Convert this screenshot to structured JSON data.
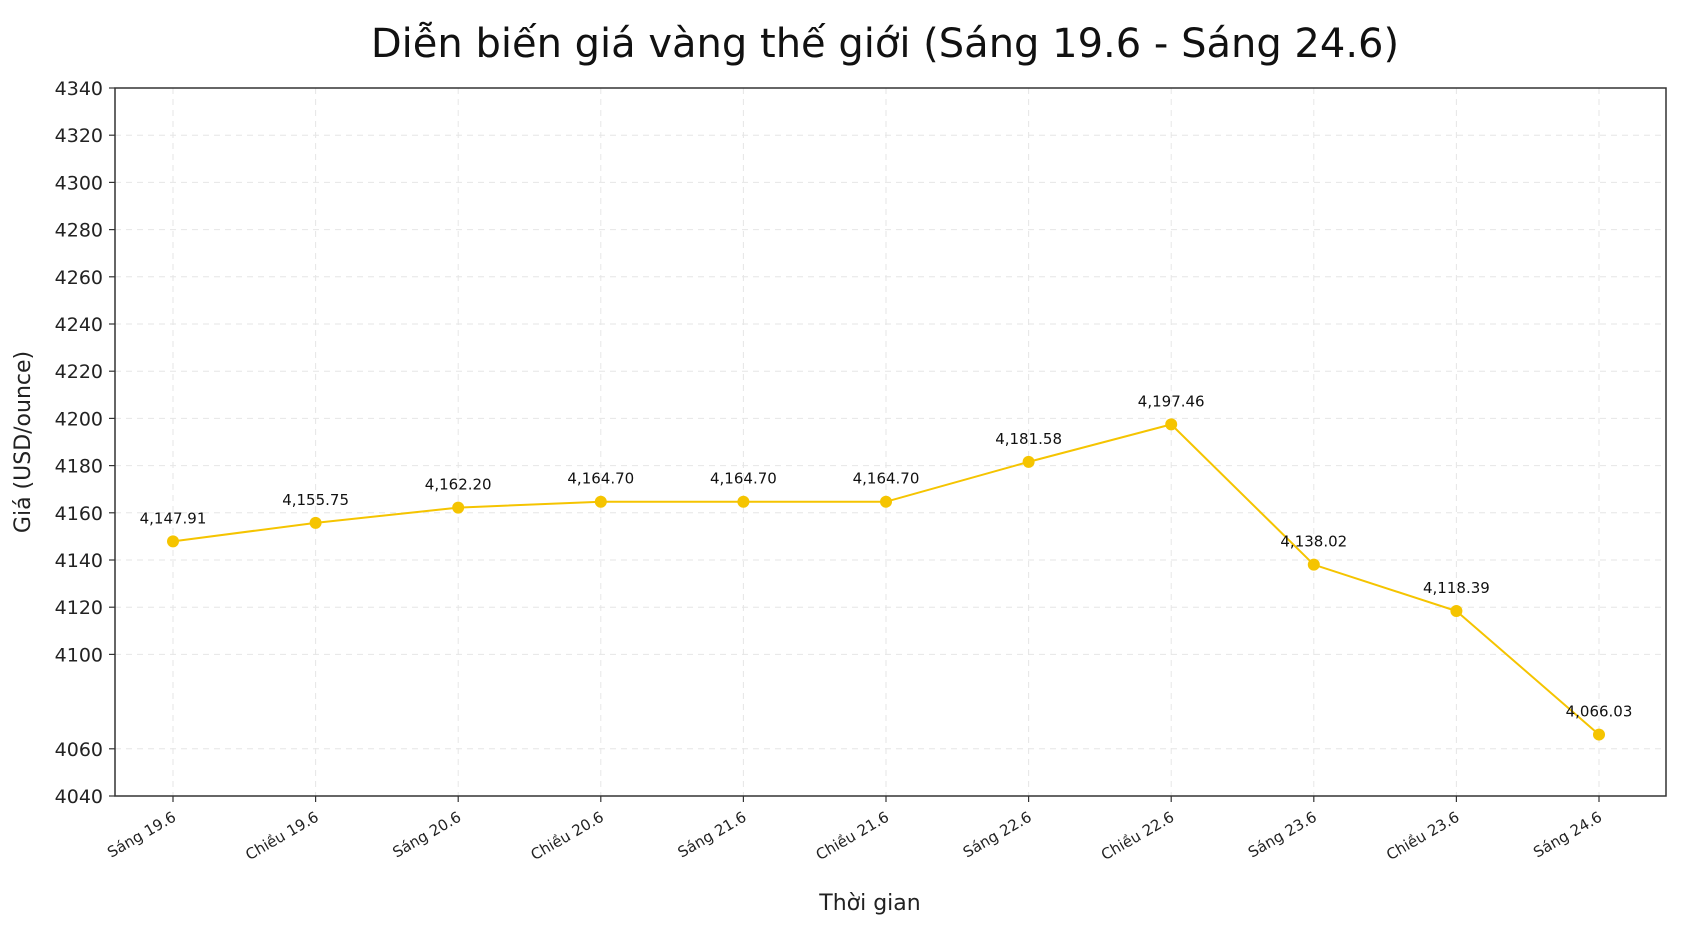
{
  "chart_data": {
    "type": "line",
    "title": "Diễn biến giá vàng thế giới (Sáng 19.6 - Sáng 24.6)",
    "xlabel": "Thời gian",
    "ylabel": "Giá (USD/ounce)",
    "ylim": [
      4040,
      4340
    ],
    "yticks": [
      4040,
      4060,
      4100,
      4120,
      4140,
      4160,
      4180,
      4200,
      4220,
      4240,
      4260,
      4280,
      4300,
      4320,
      4340
    ],
    "grid": true,
    "categories": [
      "Sáng 19.6",
      "Chiều 19.6",
      "Sáng 20.6",
      "Chiều 20.6",
      "Sáng 21.6",
      "Chiều 21.6",
      "Sáng 22.6",
      "Chiều 22.6",
      "Sáng 23.6",
      "Chiều 23.6",
      "Sáng 24.6"
    ],
    "series": [
      {
        "values": [
          4147.91,
          4155.75,
          4162.2,
          4164.7,
          4164.7,
          4164.7,
          4181.58,
          4197.46,
          4138.02,
          4118.39,
          4066.03
        ],
        "data_labels": [
          "4,147.91",
          "4,155.75",
          "4,162.20",
          "4,164.70",
          "4,164.70",
          "4,164.70",
          "4,181.58",
          "4,197.46",
          "4,138.02",
          "4,118.39",
          "4,066.03"
        ],
        "color": "#F5C400"
      }
    ]
  }
}
